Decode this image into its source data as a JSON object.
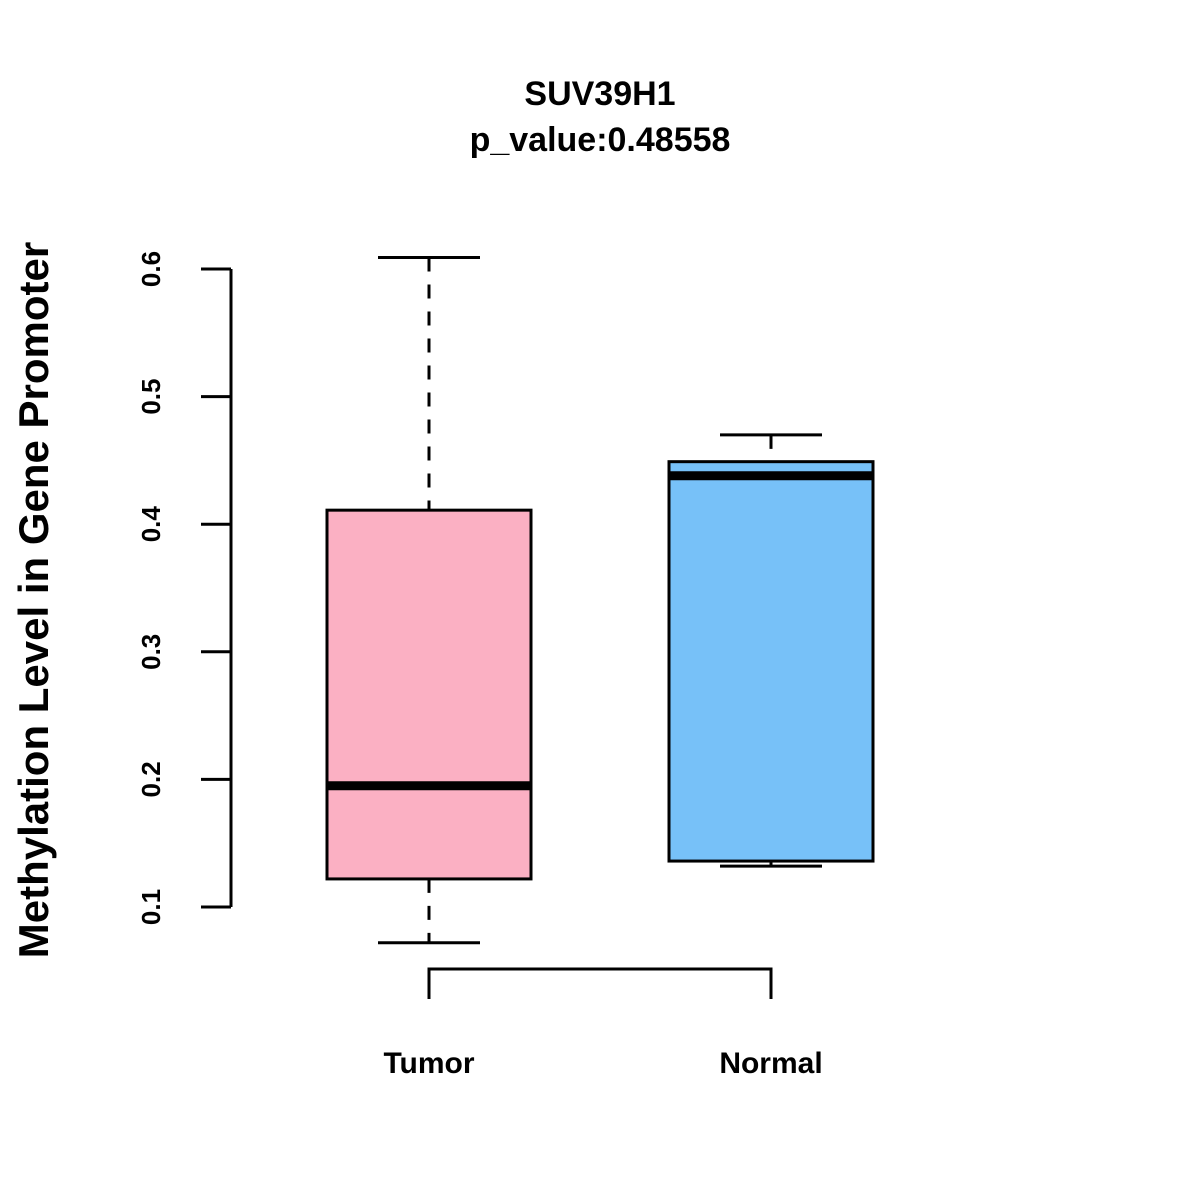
{
  "chart_data": {
    "type": "boxplot",
    "title": "SUV39H1",
    "subtitle": "p_value:0.48558",
    "xlabel": "",
    "ylabel": "Methylation Level in Gene Promoter",
    "ylim": [
      0.1,
      0.6
    ],
    "yticks": [
      0.1,
      0.2,
      0.3,
      0.4,
      0.5,
      0.6
    ],
    "ytick_labels": [
      "0.1",
      "0.2",
      "0.3",
      "0.4",
      "0.5",
      "0.6"
    ],
    "grid": false,
    "categories": [
      "Tumor",
      "Normal"
    ],
    "boxes": [
      {
        "name": "Tumor",
        "whisker_low": 0.072,
        "q1": 0.122,
        "median": 0.195,
        "q3": 0.411,
        "whisker_high": 0.609,
        "color": "#FBB0C3"
      },
      {
        "name": "Normal",
        "whisker_low": 0.132,
        "q1": 0.136,
        "median": 0.438,
        "q3": 0.449,
        "whisker_high": 0.47,
        "color": "#77C1F8"
      }
    ],
    "comparison_bracket": {
      "groups": [
        "Tumor",
        "Normal"
      ],
      "label": ""
    }
  }
}
